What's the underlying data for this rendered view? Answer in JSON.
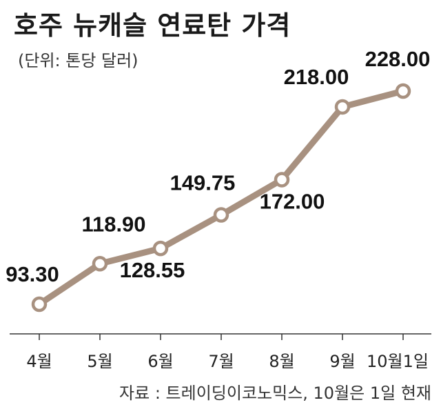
{
  "title": "호주 뉴캐슬 연료탄 가격",
  "unit": "(단위: 톤당 달러)",
  "source": "자료 : 트레이딩이코노믹스, 10월은 1일 현재",
  "colors": {
    "line": "#a89180",
    "marker_fill": "#ffffff",
    "axis": "#333333"
  },
  "chart_data": {
    "type": "line",
    "title": "호주 뉴캐슬 연료탄 가격",
    "xlabel": "",
    "ylabel": "",
    "categories": [
      "4월",
      "5월",
      "6월",
      "7월",
      "8월",
      "9월",
      "10월1일"
    ],
    "series": [
      {
        "values": [
          93.3,
          118.9,
          128.55,
          149.75,
          172.0,
          218.0,
          228.0
        ]
      }
    ],
    "data_labels": [
      "93.30",
      "118.90",
      "128.55",
      "149.75",
      "172.00",
      "218.00",
      "228.00"
    ],
    "ylim": [
      80,
      240
    ],
    "grid": false,
    "legend": "none"
  }
}
